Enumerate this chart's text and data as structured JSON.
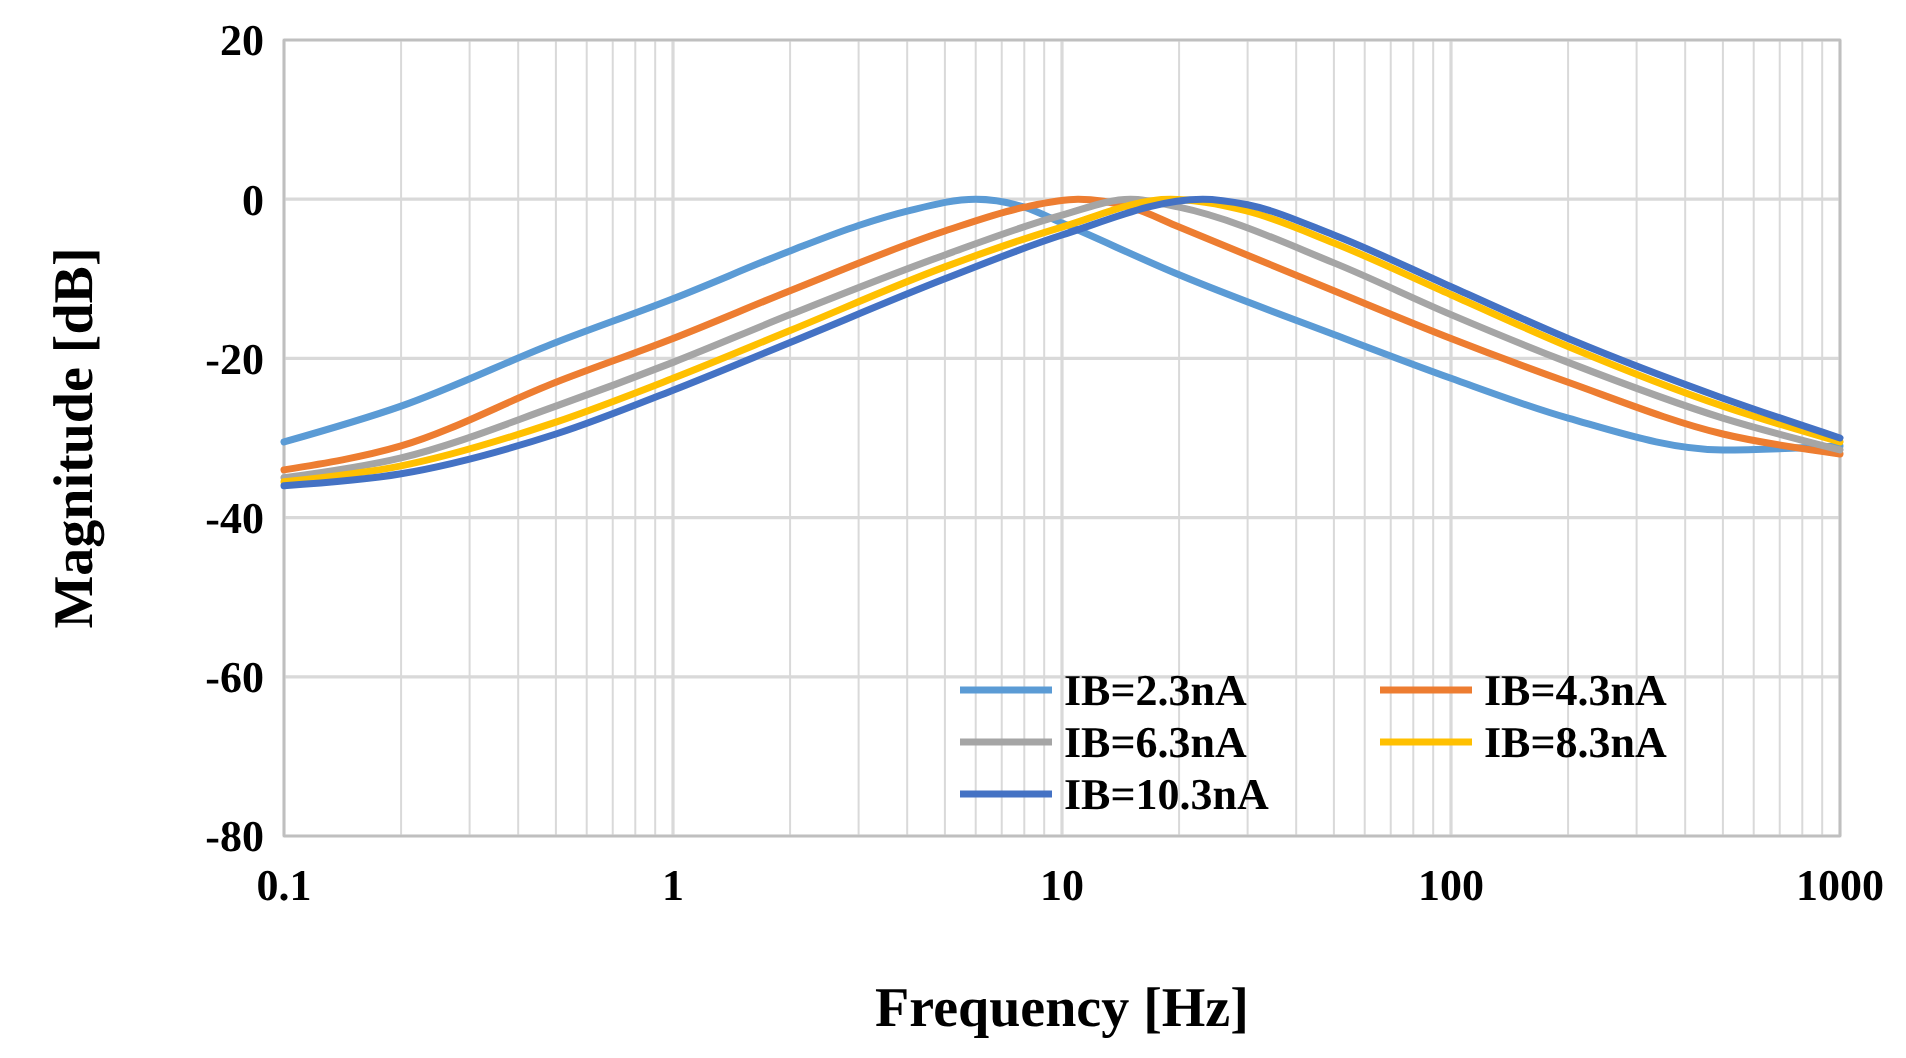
{
  "chart_data": {
    "type": "line",
    "xlabel": "Frequency [Hz]",
    "ylabel": "Magnitude [dB]",
    "log": "x",
    "xlim": [
      0.1,
      1000
    ],
    "ylim": [
      -80,
      20
    ],
    "xticks": [
      0.1,
      {
        "value": 0.2,
        "label": null
      },
      {
        "value": 0.3,
        "label": null
      },
      {
        "value": 0.4,
        "label": null
      },
      {
        "value": 0.5,
        "label": null
      },
      {
        "value": 0.6,
        "label": null
      },
      {
        "value": 0.7,
        "label": null
      },
      {
        "value": 0.8,
        "label": null
      },
      {
        "value": 0.9,
        "label": null
      },
      1,
      {
        "value": 2,
        "label": null
      },
      {
        "value": 3,
        "label": null
      },
      {
        "value": 4,
        "label": null
      },
      {
        "value": 5,
        "label": null
      },
      {
        "value": 6,
        "label": null
      },
      {
        "value": 7,
        "label": null
      },
      {
        "value": 8,
        "label": null
      },
      {
        "value": 9,
        "label": null
      },
      10,
      {
        "value": 20,
        "label": null
      },
      {
        "value": 30,
        "label": null
      },
      {
        "value": 40,
        "label": null
      },
      {
        "value": 50,
        "label": null
      },
      {
        "value": 60,
        "label": null
      },
      {
        "value": 70,
        "label": null
      },
      {
        "value": 80,
        "label": null
      },
      {
        "value": 90,
        "label": null
      },
      100,
      {
        "value": 200,
        "label": null
      },
      {
        "value": 300,
        "label": null
      },
      {
        "value": 400,
        "label": null
      },
      {
        "value": 500,
        "label": null
      },
      {
        "value": 600,
        "label": null
      },
      {
        "value": 700,
        "label": null
      },
      {
        "value": 800,
        "label": null
      },
      {
        "value": 900,
        "label": null
      },
      1000
    ],
    "yticks": [
      -80,
      -60,
      -40,
      -20,
      0,
      20
    ],
    "grid": true,
    "legend": "bottom right",
    "marker": "none",
    "line_style": "solid",
    "series": [
      {
        "name": "IB=2.3nA",
        "color": "#5b9bd5",
        "x": [
          0.1,
          0.2,
          0.5,
          1,
          2,
          3,
          4,
          6,
          8,
          10,
          20,
          50,
          100,
          200,
          500,
          1000
        ],
        "values": [
          -30.5,
          -26,
          -18,
          -12.5,
          -6.5,
          -3.3,
          -1.5,
          0,
          -1,
          -3,
          -9.5,
          -17,
          -22.5,
          -27.5,
          -31.5,
          -31
        ]
      },
      {
        "name": "IB=4.3nA",
        "color": "#ed7d31",
        "x": [
          0.1,
          0.2,
          0.5,
          1,
          2,
          5,
          8,
          11,
          15,
          20,
          50,
          100,
          200,
          500,
          1000
        ],
        "values": [
          -34,
          -31,
          -23,
          -17.5,
          -11.5,
          -4,
          -1,
          0,
          -1,
          -3.5,
          -11.5,
          -17.5,
          -23,
          -29.5,
          -32
        ]
      },
      {
        "name": "IB=6.3nA",
        "color": "#a5a5a5",
        "x": [
          0.1,
          0.2,
          0.5,
          1,
          2,
          5,
          10,
          15,
          20,
          50,
          100,
          200,
          500,
          1000
        ],
        "values": [
          -35,
          -32.5,
          -26,
          -20.5,
          -14.5,
          -7,
          -2,
          0,
          -1,
          -8,
          -14.5,
          -20.5,
          -27.5,
          -31.5
        ]
      },
      {
        "name": "IB=8.3nA",
        "color": "#ffc000",
        "x": [
          0.1,
          0.2,
          0.5,
          1,
          2,
          5,
          10,
          19,
          30,
          50,
          100,
          200,
          500,
          1000
        ],
        "values": [
          -35.5,
          -33.5,
          -28,
          -22.5,
          -16.5,
          -8.5,
          -3.5,
          0,
          -1.5,
          -5.5,
          -12,
          -18.5,
          -26,
          -30.5
        ]
      },
      {
        "name": "IB=10.3nA",
        "color": "#4472c4",
        "x": [
          0.1,
          0.2,
          0.5,
          1,
          2,
          5,
          10,
          23,
          30,
          50,
          100,
          200,
          500,
          1000
        ],
        "values": [
          -36,
          -34.5,
          -29.5,
          -24,
          -18,
          -10,
          -4.5,
          0,
          -0.7,
          -4.5,
          -11,
          -17.5,
          -25,
          -30
        ]
      }
    ]
  }
}
